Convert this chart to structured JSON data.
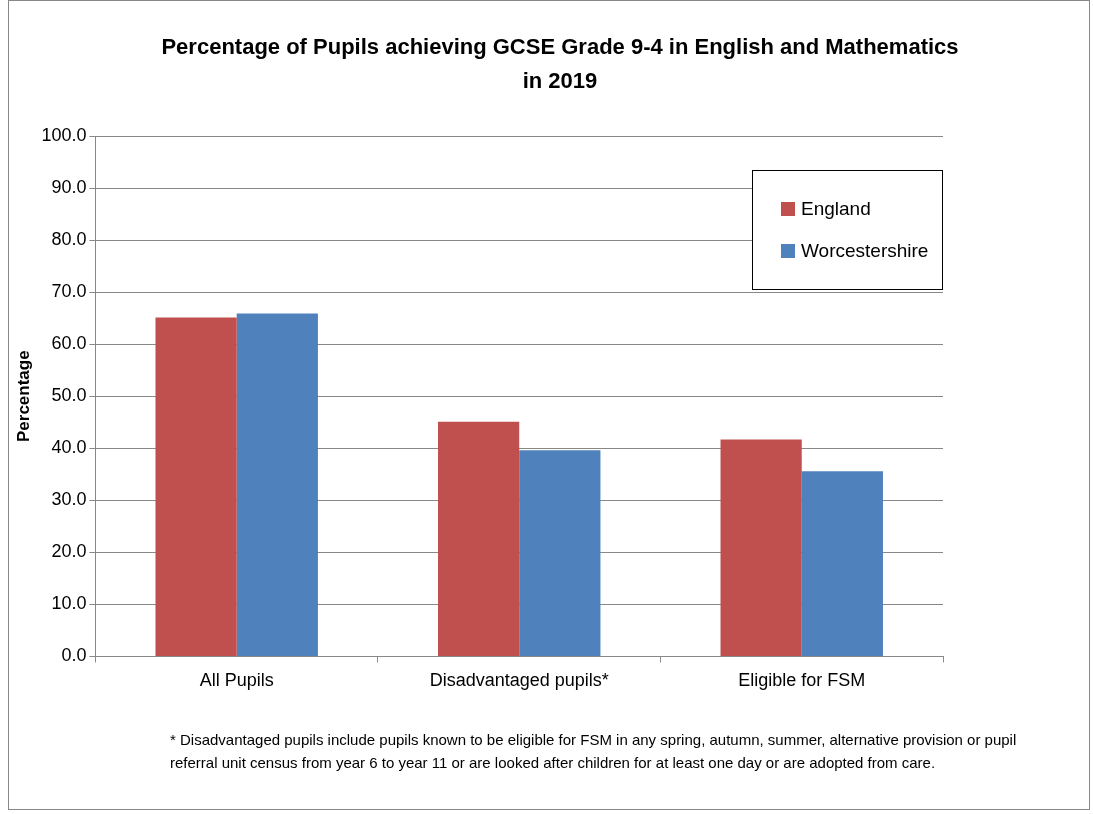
{
  "chart_data": {
    "type": "bar",
    "title": "Percentage of Pupils achieving GCSE Grade 9-4 in English and Mathematics in 2019",
    "ylabel": "Percentage",
    "categories": [
      "All Pupils",
      "Disadvantaged pupils*",
      "Eligible for FSM"
    ],
    "series": [
      {
        "name": "England",
        "color": "#c0504d",
        "values": [
          65.1,
          45.1,
          41.7
        ]
      },
      {
        "name": "Worcestershire",
        "color": "#4f81bd",
        "values": [
          65.9,
          39.6,
          35.6
        ]
      }
    ],
    "ylim": [
      0,
      100
    ],
    "yticks": [
      {
        "value": 0,
        "label": "0.0"
      },
      {
        "value": 10,
        "label": "10.0"
      },
      {
        "value": 20,
        "label": "20.0"
      },
      {
        "value": 30,
        "label": "30.0"
      },
      {
        "value": 40,
        "label": "40.0"
      },
      {
        "value": 50,
        "label": "50.0"
      },
      {
        "value": 60,
        "label": "60.0"
      },
      {
        "value": 70,
        "label": "70.0"
      },
      {
        "value": 80,
        "label": "80.0"
      },
      {
        "value": 90,
        "label": "90.0"
      },
      {
        "value": 100,
        "label": "100.0"
      }
    ],
    "grid": "y",
    "legend": "top right",
    "annotations": [
      "* Disadvantaged pupils include pupils known to be eligible for FSM in any spring, autumn, summer, alternative provision or pupil referral unit census from year 6 to year 11 or are looked after children for at least one day or are adopted from care."
    ]
  }
}
